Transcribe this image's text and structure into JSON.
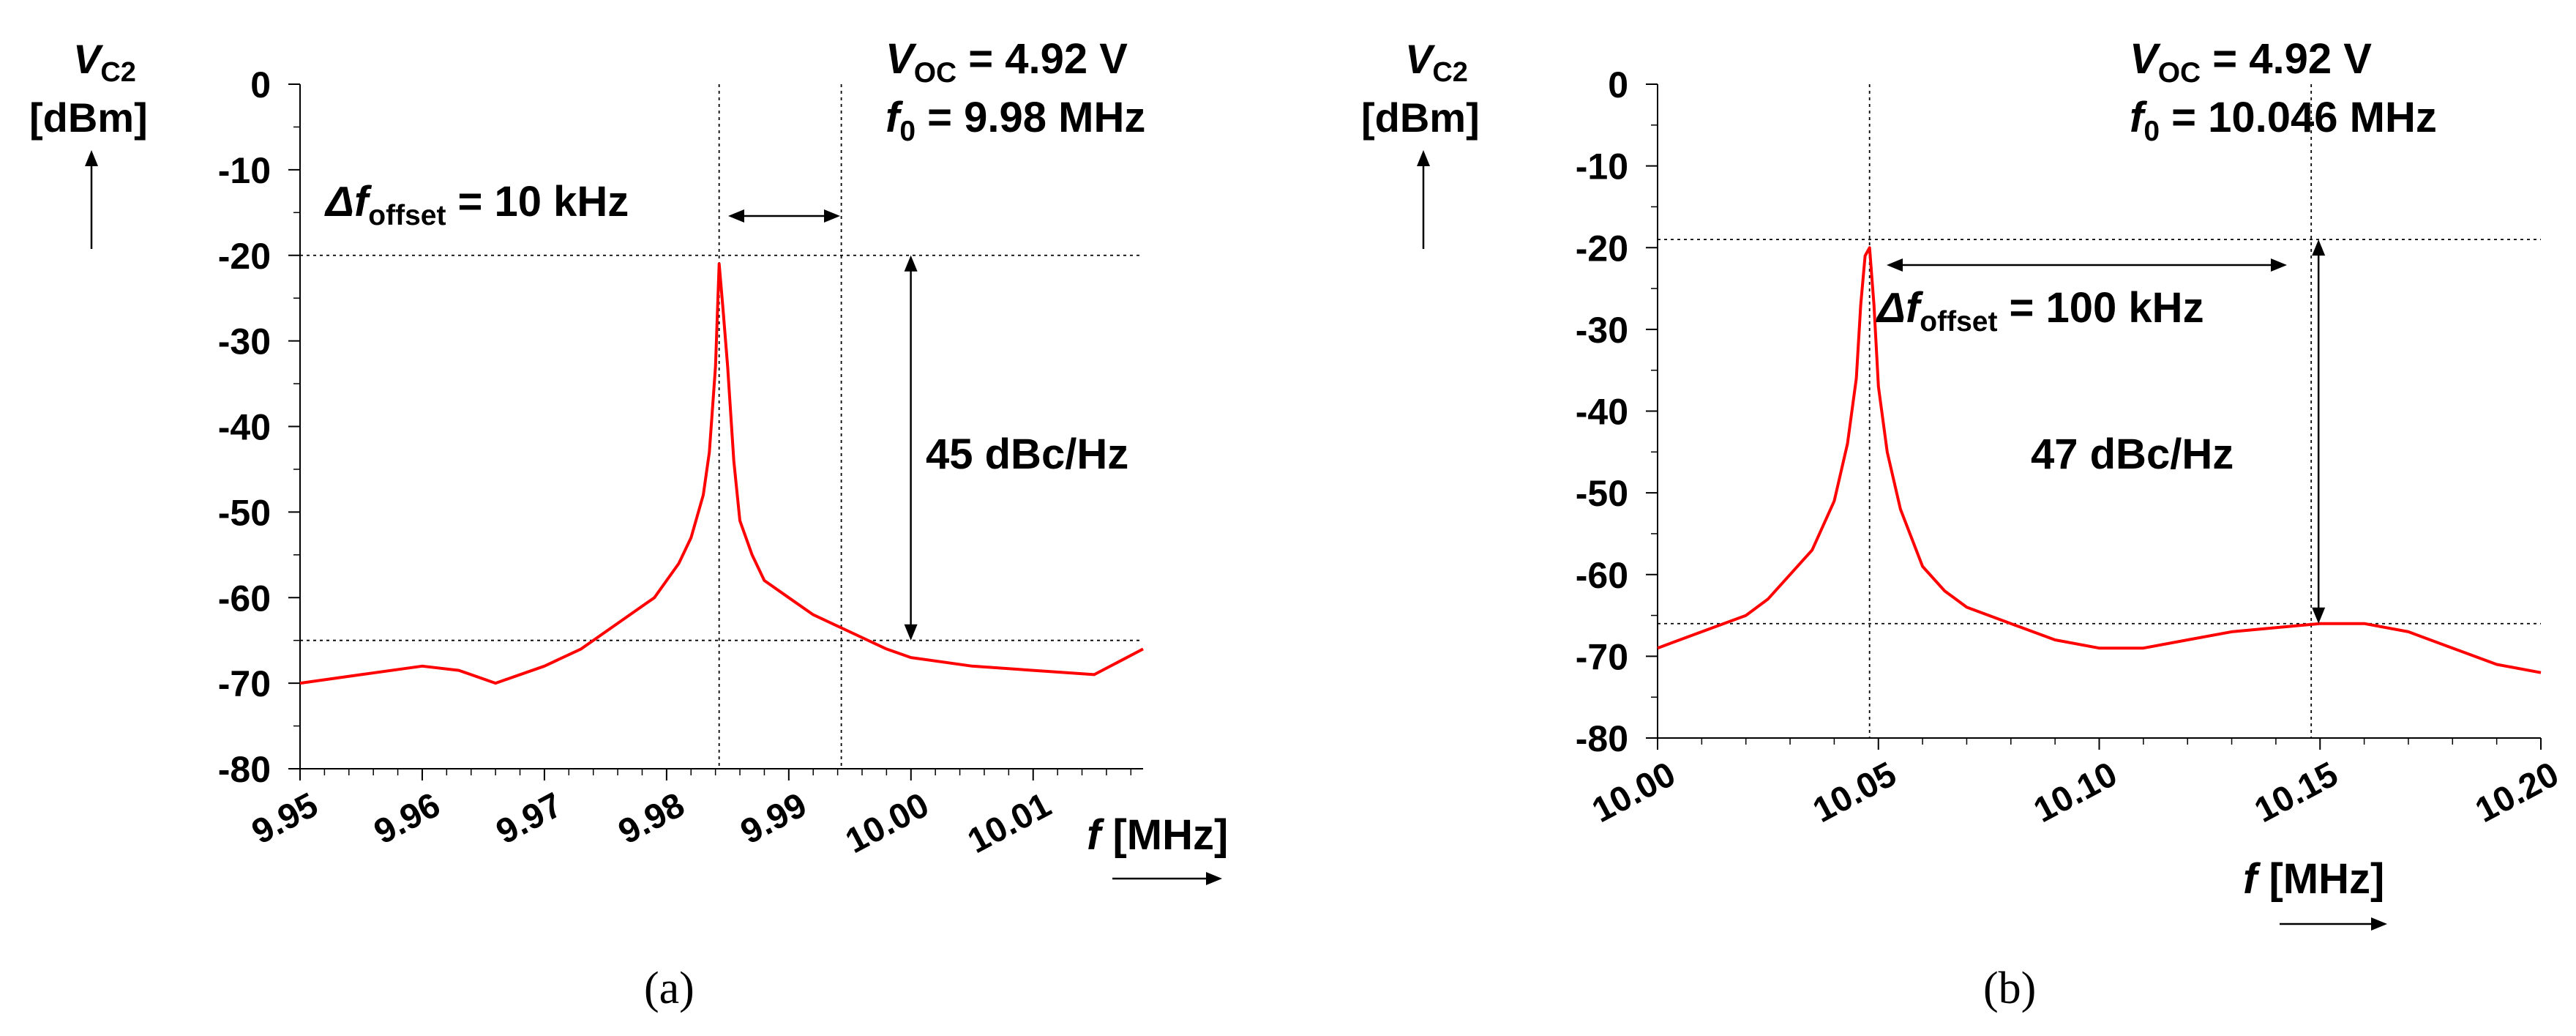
{
  "chart_data": [
    {
      "type": "line",
      "panel_label": "(a)",
      "y_axis": {
        "label_symbol": "V",
        "label_subscript": "C2",
        "label_unit": "[dBm]",
        "ylim": [
          -80,
          0
        ],
        "ticks": [
          0,
          -10,
          -20,
          -30,
          -40,
          -50,
          -60,
          -70,
          -80
        ],
        "tick_labels": [
          "0",
          "-10",
          "-20",
          "-30",
          "-40",
          "-50",
          "-60",
          "-70",
          "-80"
        ]
      },
      "x_axis": {
        "label_symbol": "f",
        "label_unit": "[MHz]",
        "xlim": [
          9.95,
          10.019
        ],
        "ticks": [
          9.95,
          9.96,
          9.97,
          9.98,
          9.99,
          10.0,
          10.01
        ],
        "tick_labels": [
          "9.95",
          "9.96",
          "9.97",
          "9.98",
          "9.99",
          "10.00",
          "10.01"
        ]
      },
      "annotations": {
        "voc_symbol": "V",
        "voc_sub": "OC",
        "voc_value": " = 4.92 V",
        "f0_symbol": "f",
        "f0_sub": "0",
        "f0_value": " = 9.98 MHz",
        "offset_symbol": "Δf",
        "offset_sub": "offset",
        "offset_value": " = 10 kHz",
        "dbc": "45 dBc/Hz"
      },
      "guides": {
        "peak_x": 9.9843,
        "offset_x": 9.9943,
        "level_top": -20,
        "level_bottom": -65
      },
      "series": [
        {
          "color": "#ff0000",
          "x": [
            9.95,
            9.955,
            9.96,
            9.963,
            9.966,
            9.97,
            9.973,
            9.975,
            9.977,
            9.979,
            9.98,
            9.981,
            9.982,
            9.983,
            9.9835,
            9.984,
            9.9843,
            9.9846,
            9.985,
            9.9855,
            9.986,
            9.987,
            9.988,
            9.99,
            9.992,
            9.995,
            9.998,
            10.0,
            10.005,
            10.01,
            10.015,
            10.019
          ],
          "y": [
            -70,
            -69,
            -68,
            -68.5,
            -70,
            -68,
            -66,
            -64,
            -62,
            -60,
            -58,
            -56,
            -53,
            -48,
            -43,
            -33,
            -21,
            -26,
            -33,
            -44,
            -51,
            -55,
            -58,
            -60,
            -62,
            -64,
            -66,
            -67,
            -68,
            -68.5,
            -69,
            -66
          ]
        }
      ]
    },
    {
      "type": "line",
      "panel_label": "(b)",
      "y_axis": {
        "label_symbol": "V",
        "label_subscript": "C2",
        "label_unit": "[dBm]",
        "ylim": [
          -80,
          0
        ],
        "ticks": [
          0,
          -10,
          -20,
          -30,
          -40,
          -50,
          -60,
          -70,
          -80
        ],
        "tick_labels": [
          "0",
          "-10",
          "-20",
          "-30",
          "-40",
          "-50",
          "-60",
          "-70",
          "-80"
        ]
      },
      "x_axis": {
        "label_symbol": "f",
        "label_unit": "[MHz]",
        "xlim": [
          10.0,
          10.2
        ],
        "ticks": [
          10.0,
          10.05,
          10.1,
          10.15,
          10.2
        ],
        "tick_labels": [
          "10.00",
          "10.05",
          "10.10",
          "10.15",
          "10.20"
        ]
      },
      "annotations": {
        "voc_symbol": "V",
        "voc_sub": "OC",
        "voc_value": " = 4.92 V",
        "f0_symbol": "f",
        "f0_sub": "0",
        "f0_value": " = 10.046 MHz",
        "offset_symbol": "Δf",
        "offset_sub": "offset",
        "offset_value": " = 100 kHz",
        "dbc": "47 dBc/Hz"
      },
      "guides": {
        "peak_x": 10.048,
        "offset_x": 10.148,
        "level_top": -19,
        "level_bottom": -66
      },
      "series": [
        {
          "color": "#ff0000",
          "x": [
            10.0,
            10.005,
            10.01,
            10.015,
            10.02,
            10.025,
            10.03,
            10.035,
            10.04,
            10.043,
            10.045,
            10.046,
            10.047,
            10.048,
            10.049,
            10.05,
            10.052,
            10.055,
            10.06,
            10.065,
            10.07,
            10.08,
            10.09,
            10.1,
            10.11,
            10.12,
            10.13,
            10.14,
            10.15,
            10.16,
            10.17,
            10.18,
            10.19,
            10.2
          ],
          "y": [
            -69,
            -68,
            -67,
            -66,
            -65,
            -63,
            -60,
            -57,
            -51,
            -44,
            -36,
            -27,
            -21,
            -20,
            -27,
            -37,
            -45,
            -52,
            -59,
            -62,
            -64,
            -66,
            -68,
            -69,
            -69,
            -68,
            -67,
            -66.5,
            -66,
            -66,
            -67,
            -69,
            -71,
            -72
          ]
        }
      ]
    }
  ]
}
